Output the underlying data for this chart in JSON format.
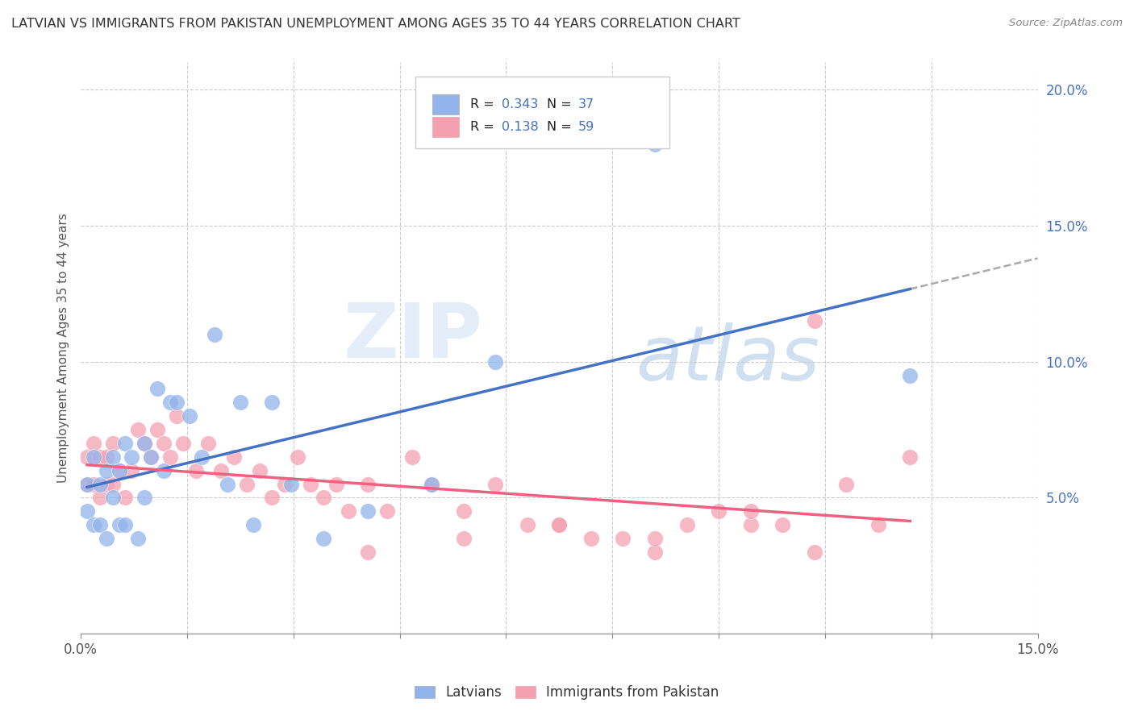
{
  "title": "LATVIAN VS IMMIGRANTS FROM PAKISTAN UNEMPLOYMENT AMONG AGES 35 TO 44 YEARS CORRELATION CHART",
  "source": "Source: ZipAtlas.com",
  "ylabel": "Unemployment Among Ages 35 to 44 years",
  "latvian_R": "0.343",
  "latvian_N": "37",
  "pakistan_R": "0.138",
  "pakistan_N": "59",
  "latvian_color": "#92b4ec",
  "pakistan_color": "#f4a0b0",
  "latvian_line_color": "#4472c4",
  "pakistan_line_color": "#f06080",
  "trend_line_color": "#aaaaaa",
  "watermark_zip": "ZIP",
  "watermark_atlas": "atlas",
  "latvian_x": [
    0.001,
    0.001,
    0.002,
    0.002,
    0.003,
    0.003,
    0.004,
    0.004,
    0.005,
    0.005,
    0.006,
    0.006,
    0.007,
    0.007,
    0.008,
    0.009,
    0.01,
    0.01,
    0.011,
    0.012,
    0.013,
    0.014,
    0.015,
    0.017,
    0.019,
    0.021,
    0.023,
    0.025,
    0.027,
    0.03,
    0.033,
    0.038,
    0.045,
    0.055,
    0.065,
    0.09,
    0.13
  ],
  "latvian_y": [
    0.055,
    0.045,
    0.065,
    0.04,
    0.055,
    0.04,
    0.06,
    0.035,
    0.065,
    0.05,
    0.06,
    0.04,
    0.07,
    0.04,
    0.065,
    0.035,
    0.07,
    0.05,
    0.065,
    0.09,
    0.06,
    0.085,
    0.085,
    0.08,
    0.065,
    0.11,
    0.055,
    0.085,
    0.04,
    0.085,
    0.055,
    0.035,
    0.045,
    0.055,
    0.1,
    0.18,
    0.095
  ],
  "pakistan_x": [
    0.001,
    0.001,
    0.002,
    0.002,
    0.003,
    0.003,
    0.004,
    0.004,
    0.005,
    0.005,
    0.006,
    0.007,
    0.008,
    0.009,
    0.01,
    0.011,
    0.012,
    0.013,
    0.014,
    0.015,
    0.016,
    0.018,
    0.02,
    0.022,
    0.024,
    0.026,
    0.028,
    0.03,
    0.032,
    0.034,
    0.036,
    0.038,
    0.04,
    0.042,
    0.045,
    0.048,
    0.052,
    0.055,
    0.06,
    0.065,
    0.07,
    0.075,
    0.08,
    0.085,
    0.09,
    0.095,
    0.1,
    0.105,
    0.11,
    0.115,
    0.12,
    0.125,
    0.13,
    0.105,
    0.09,
    0.075,
    0.06,
    0.045,
    0.115
  ],
  "pakistan_y": [
    0.065,
    0.055,
    0.07,
    0.055,
    0.065,
    0.05,
    0.065,
    0.055,
    0.07,
    0.055,
    0.06,
    0.05,
    0.06,
    0.075,
    0.07,
    0.065,
    0.075,
    0.07,
    0.065,
    0.08,
    0.07,
    0.06,
    0.07,
    0.06,
    0.065,
    0.055,
    0.06,
    0.05,
    0.055,
    0.065,
    0.055,
    0.05,
    0.055,
    0.045,
    0.055,
    0.045,
    0.065,
    0.055,
    0.045,
    0.055,
    0.04,
    0.04,
    0.035,
    0.035,
    0.03,
    0.04,
    0.045,
    0.04,
    0.04,
    0.03,
    0.055,
    0.04,
    0.065,
    0.045,
    0.035,
    0.04,
    0.035,
    0.03,
    0.115
  ],
  "xmin": 0.0,
  "xmax": 0.15,
  "ymin": 0.0,
  "ymax": 0.21,
  "right_yticks": [
    0.0,
    0.05,
    0.1,
    0.15,
    0.2
  ],
  "right_ylabels": [
    "",
    "5.0%",
    "10.0%",
    "15.0%",
    "20.0%"
  ]
}
